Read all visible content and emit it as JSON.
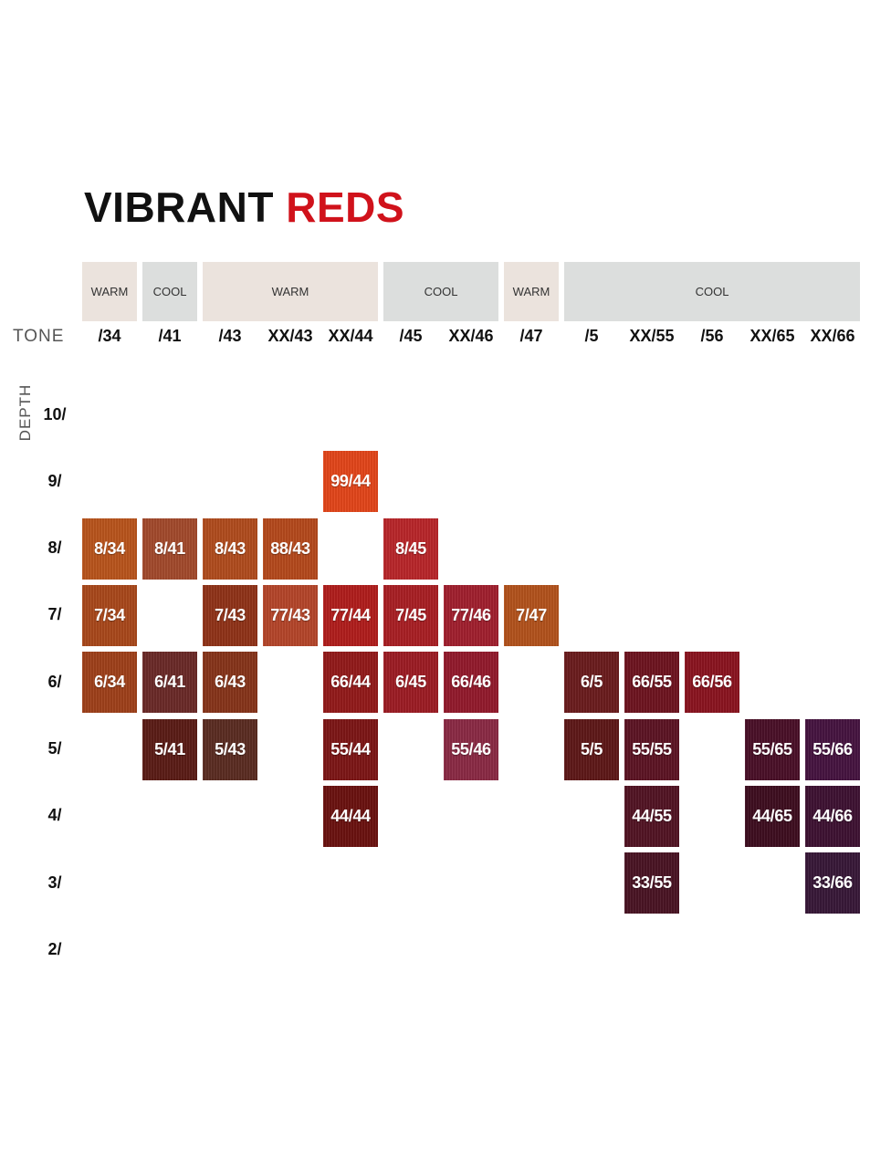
{
  "title": {
    "part1": "VIBRANT",
    "part2": "REDS",
    "accent_color": "#d0121b"
  },
  "tone_axis_label": "TONE",
  "depth_axis_label": "DEPTH",
  "groups": [
    {
      "label": "WARM",
      "kind": "warm",
      "from": 0,
      "to": 0
    },
    {
      "label": "COOL",
      "kind": "cool",
      "from": 1,
      "to": 1
    },
    {
      "label": "WARM",
      "kind": "warm",
      "from": 2,
      "to": 4
    },
    {
      "label": "COOL",
      "kind": "cool",
      "from": 5,
      "to": 6
    },
    {
      "label": "WARM",
      "kind": "warm",
      "from": 7,
      "to": 7
    },
    {
      "label": "COOL",
      "kind": "cool",
      "from": 8,
      "to": 12
    }
  ],
  "tones": [
    "/34",
    "/41",
    "/43",
    "XX/43",
    "XX/44",
    "/45",
    "XX/46",
    "/47",
    "/5",
    "XX/55",
    "/56",
    "XX/65",
    "XX/66"
  ],
  "depths": [
    "10/",
    "9/",
    "8/",
    "7/",
    "6/",
    "5/",
    "4/",
    "3/",
    "2/"
  ],
  "swatches": [
    {
      "label": "99/44",
      "col": 4,
      "row": 1,
      "color": "#e2451a"
    },
    {
      "label": "8/34",
      "col": 0,
      "row": 2,
      "color": "#b8541c"
    },
    {
      "label": "8/41",
      "col": 1,
      "row": 2,
      "color": "#a24a2c"
    },
    {
      "label": "8/43",
      "col": 2,
      "row": 2,
      "color": "#b04c1e"
    },
    {
      "label": "88/43",
      "col": 3,
      "row": 2,
      "color": "#b4491c"
    },
    {
      "label": "8/45",
      "col": 5,
      "row": 2,
      "color": "#b8262a"
    },
    {
      "label": "7/34",
      "col": 0,
      "row": 3,
      "color": "#a8481b"
    },
    {
      "label": "7/43",
      "col": 2,
      "row": 3,
      "color": "#8f3318"
    },
    {
      "label": "77/43",
      "col": 3,
      "row": 3,
      "color": "#b4452a"
    },
    {
      "label": "77/44",
      "col": 4,
      "row": 3,
      "color": "#b01e1c"
    },
    {
      "label": "7/45",
      "col": 5,
      "row": 3,
      "color": "#a81f24"
    },
    {
      "label": "77/46",
      "col": 6,
      "row": 3,
      "color": "#a0202e"
    },
    {
      "label": "7/47",
      "col": 7,
      "row": 3,
      "color": "#b2521c"
    },
    {
      "label": "6/34",
      "col": 0,
      "row": 4,
      "color": "#9e401a"
    },
    {
      "label": "6/41",
      "col": 1,
      "row": 4,
      "color": "#6a2a28"
    },
    {
      "label": "6/43",
      "col": 2,
      "row": 4,
      "color": "#86341a"
    },
    {
      "label": "66/44",
      "col": 4,
      "row": 4,
      "color": "#921a1a"
    },
    {
      "label": "6/45",
      "col": 5,
      "row": 4,
      "color": "#9c1c24"
    },
    {
      "label": "66/46",
      "col": 6,
      "row": 4,
      "color": "#921a2c"
    },
    {
      "label": "6/5",
      "col": 8,
      "row": 4,
      "color": "#6a1c1e"
    },
    {
      "label": "66/55",
      "col": 9,
      "row": 4,
      "color": "#6e1420"
    },
    {
      "label": "66/56",
      "col": 10,
      "row": 4,
      "color": "#8a1420"
    },
    {
      "label": "5/41",
      "col": 1,
      "row": 5,
      "color": "#5a1c16"
    },
    {
      "label": "5/43",
      "col": 2,
      "row": 5,
      "color": "#5a2c22"
    },
    {
      "label": "55/44",
      "col": 4,
      "row": 5,
      "color": "#7c1616"
    },
    {
      "label": "55/46",
      "col": 6,
      "row": 5,
      "color": "#8a2a44"
    },
    {
      "label": "5/5",
      "col": 8,
      "row": 5,
      "color": "#5e1818"
    },
    {
      "label": "55/55",
      "col": 9,
      "row": 5,
      "color": "#5c1424"
    },
    {
      "label": "55/65",
      "col": 11,
      "row": 5,
      "color": "#4a1028"
    },
    {
      "label": "55/66",
      "col": 12,
      "row": 5,
      "color": "#461440"
    },
    {
      "label": "44/44",
      "col": 4,
      "row": 6,
      "color": "#6a1210"
    },
    {
      "label": "44/55",
      "col": 9,
      "row": 6,
      "color": "#521424"
    },
    {
      "label": "44/65",
      "col": 11,
      "row": 6,
      "color": "#3e0e20"
    },
    {
      "label": "44/66",
      "col": 12,
      "row": 6,
      "color": "#3e1232"
    },
    {
      "label": "33/55",
      "col": 9,
      "row": 7,
      "color": "#4a1424"
    },
    {
      "label": "33/66",
      "col": 12,
      "row": 7,
      "color": "#381838"
    }
  ]
}
